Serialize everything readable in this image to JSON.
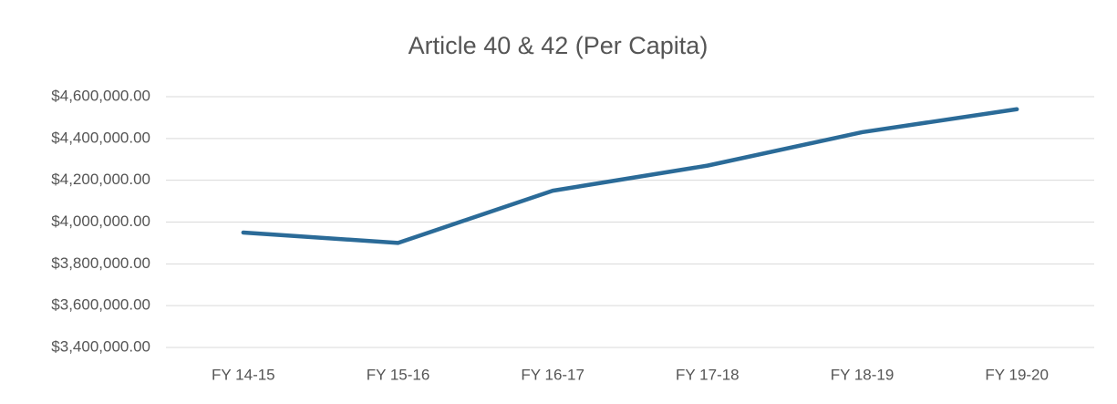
{
  "chart_data": {
    "type": "line",
    "title": "Article 40 & 42 (Per Capita)",
    "categories": [
      "FY 14-15",
      "FY 15-16",
      "FY 16-17",
      "FY 17-18",
      "FY 18-19",
      "FY 19-20"
    ],
    "series": [
      {
        "name": "Article 40 & 42 (Per Capita)",
        "color": "#2b6b98",
        "values": [
          3950000,
          3900000,
          4150000,
          4270000,
          4430000,
          4540000
        ]
      }
    ],
    "ylim": [
      3400000,
      4600000
    ],
    "yticks": [
      {
        "value": 3400000,
        "label": "$3,400,000.00"
      },
      {
        "value": 3600000,
        "label": "$3,600,000.00"
      },
      {
        "value": 3800000,
        "label": "$3,800,000.00"
      },
      {
        "value": 4000000,
        "label": "$4,000,000.00"
      },
      {
        "value": 4200000,
        "label": "$4,200,000.00"
      },
      {
        "value": 4400000,
        "label": "$4,400,000.00"
      },
      {
        "value": 4600000,
        "label": "$4,600,000.00"
      }
    ],
    "grid": true
  }
}
